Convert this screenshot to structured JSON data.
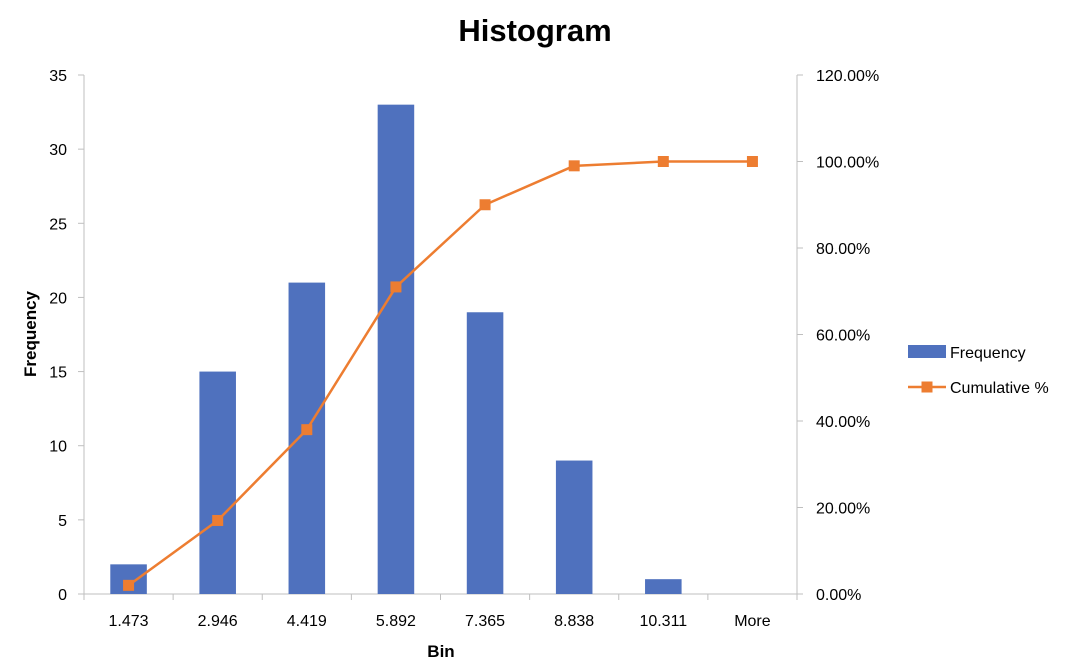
{
  "chart_data": {
    "type": "bar",
    "title": "Histogram",
    "xlabel": "Bin",
    "ylabel": "Frequency",
    "categories": [
      "1.473",
      "2.946",
      "4.419",
      "5.892",
      "7.365",
      "8.838",
      "10.311",
      "More"
    ],
    "ylim": [
      0,
      35
    ],
    "y_ticks": [
      "0",
      "5",
      "10",
      "15",
      "20",
      "25",
      "30",
      "35"
    ],
    "y2lim": [
      0,
      120
    ],
    "y2_ticks": [
      "0.00%",
      "20.00%",
      "40.00%",
      "60.00%",
      "80.00%",
      "100.00%",
      "120.00%"
    ],
    "grid": false,
    "legend_position": "right",
    "series": [
      {
        "name": "Frequency",
        "type": "bar",
        "axis": "left",
        "color": "#4f71be",
        "values": [
          2,
          15,
          21,
          33,
          19,
          9,
          1,
          0
        ]
      },
      {
        "name": "Cumulative %",
        "type": "line",
        "axis": "right",
        "color": "#ed7d31",
        "values": [
          2.0,
          17.0,
          38.0,
          71.0,
          90.0,
          99.0,
          100.0,
          100.0
        ]
      }
    ]
  }
}
